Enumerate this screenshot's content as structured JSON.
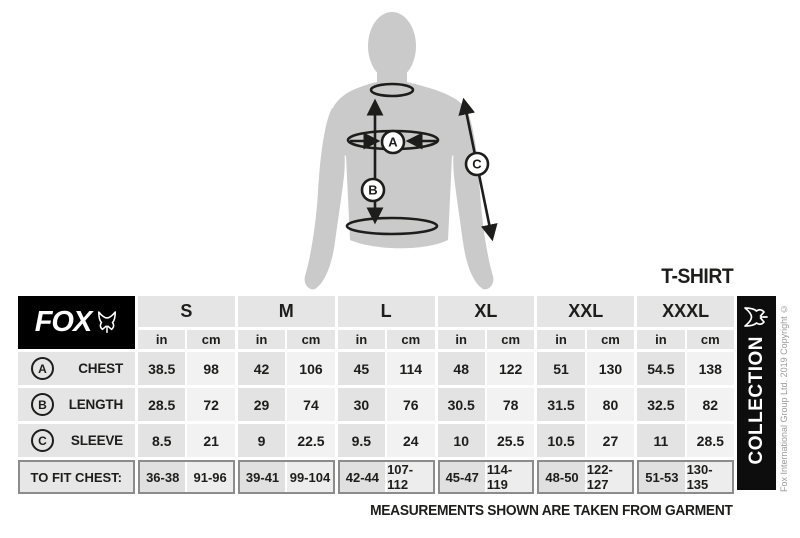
{
  "title_label": "T-SHIRT",
  "footer_note": "MEASUREMENTS SHOWN ARE TAKEN FROM GARMENT",
  "brand": {
    "logo_text": "FOX",
    "collection_label": "COLLECTION",
    "copyright_text": "Fox International Group Ltd. 2019 Copyright ©"
  },
  "diagram": {
    "marker_a": "A",
    "marker_b": "B",
    "marker_c": "C"
  },
  "chart_data": {
    "type": "table",
    "title": "T-SHIRT",
    "columns": [
      "S",
      "M",
      "L",
      "XL",
      "XXL",
      "XXXL"
    ],
    "units": [
      "in",
      "cm"
    ],
    "rows": [
      {
        "marker": "A",
        "label": "CHEST",
        "values": [
          [
            "38.5",
            "98"
          ],
          [
            "42",
            "106"
          ],
          [
            "45",
            "114"
          ],
          [
            "48",
            "122"
          ],
          [
            "51",
            "130"
          ],
          [
            "54.5",
            "138"
          ]
        ]
      },
      {
        "marker": "B",
        "label": "LENGTH",
        "values": [
          [
            "28.5",
            "72"
          ],
          [
            "29",
            "74"
          ],
          [
            "30",
            "76"
          ],
          [
            "30.5",
            "78"
          ],
          [
            "31.5",
            "80"
          ],
          [
            "32.5",
            "82"
          ]
        ]
      },
      {
        "marker": "C",
        "label": "SLEEVE",
        "values": [
          [
            "8.5",
            "21"
          ],
          [
            "9",
            "22.5"
          ],
          [
            "9.5",
            "24"
          ],
          [
            "10",
            "25.5"
          ],
          [
            "10.5",
            "27"
          ],
          [
            "11",
            "28.5"
          ]
        ]
      }
    ],
    "fit_row": {
      "label": "TO FIT CHEST:",
      "values": [
        [
          "36-38",
          "91-96"
        ],
        [
          "39-41",
          "99-104"
        ],
        [
          "42-44",
          "107-112"
        ],
        [
          "45-47",
          "114-119"
        ],
        [
          "48-50",
          "122-127"
        ],
        [
          "51-53",
          "130-135"
        ]
      ]
    }
  },
  "colors": {
    "ink": "#1d1d1b",
    "bar_black": "#0d0d0d",
    "cell_gray": "#e5e5e5",
    "cell_light": "#f2f2f2",
    "silhouette_gray": "#cacaca",
    "fit_border_gray": "#8c8c8c"
  }
}
